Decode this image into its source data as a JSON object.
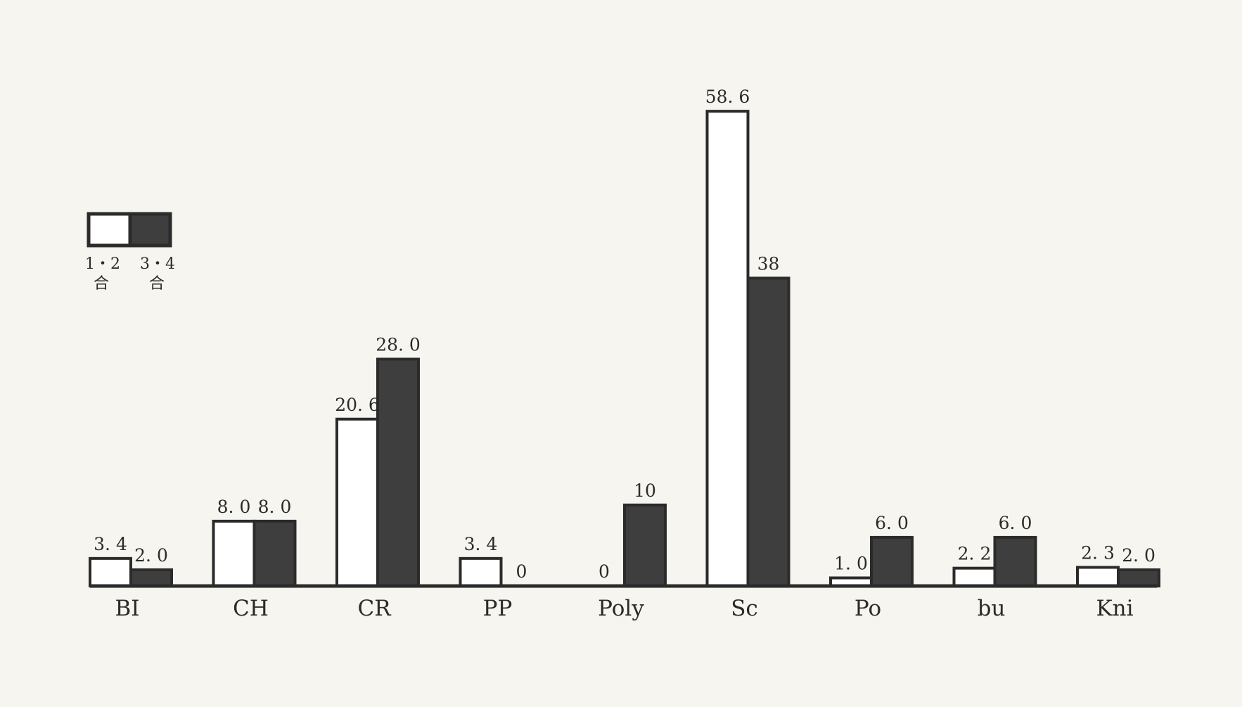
{
  "chart_data": {
    "type": "bar",
    "categories": [
      "BI",
      "CH",
      "CR",
      "PP",
      "Poly",
      "Sc",
      "Po",
      "bu",
      "Kni"
    ],
    "series": [
      {
        "name": "1・2合",
        "name_line1": "1・2",
        "name_line2": "合",
        "color": "#ffffff",
        "values": [
          3.4,
          8.0,
          20.6,
          3.4,
          0,
          58.6,
          1.0,
          2.2,
          2.3
        ],
        "value_labels": [
          "3. 4",
          "8. 0",
          "20. 6",
          "3. 4",
          "0",
          "58. 6",
          "1. 0",
          "2. 2",
          "2. 3"
        ]
      },
      {
        "name": "3・4合",
        "name_line1": "3・4",
        "name_line2": "合",
        "color": "#3e3e3e",
        "values": [
          2.0,
          8.0,
          28.0,
          0,
          10,
          38,
          6.0,
          6.0,
          2.0
        ],
        "value_labels": [
          "2. 0",
          "8. 0",
          "28. 0",
          "0",
          "10",
          "38",
          "6. 0",
          "6. 0",
          "2. 0"
        ]
      }
    ],
    "title": "",
    "xlabel": "",
    "ylabel": "",
    "ylim": [
      0,
      60
    ],
    "grid": false,
    "legend_position": "top-left",
    "bar_outline_color": "#2b2b2b"
  }
}
